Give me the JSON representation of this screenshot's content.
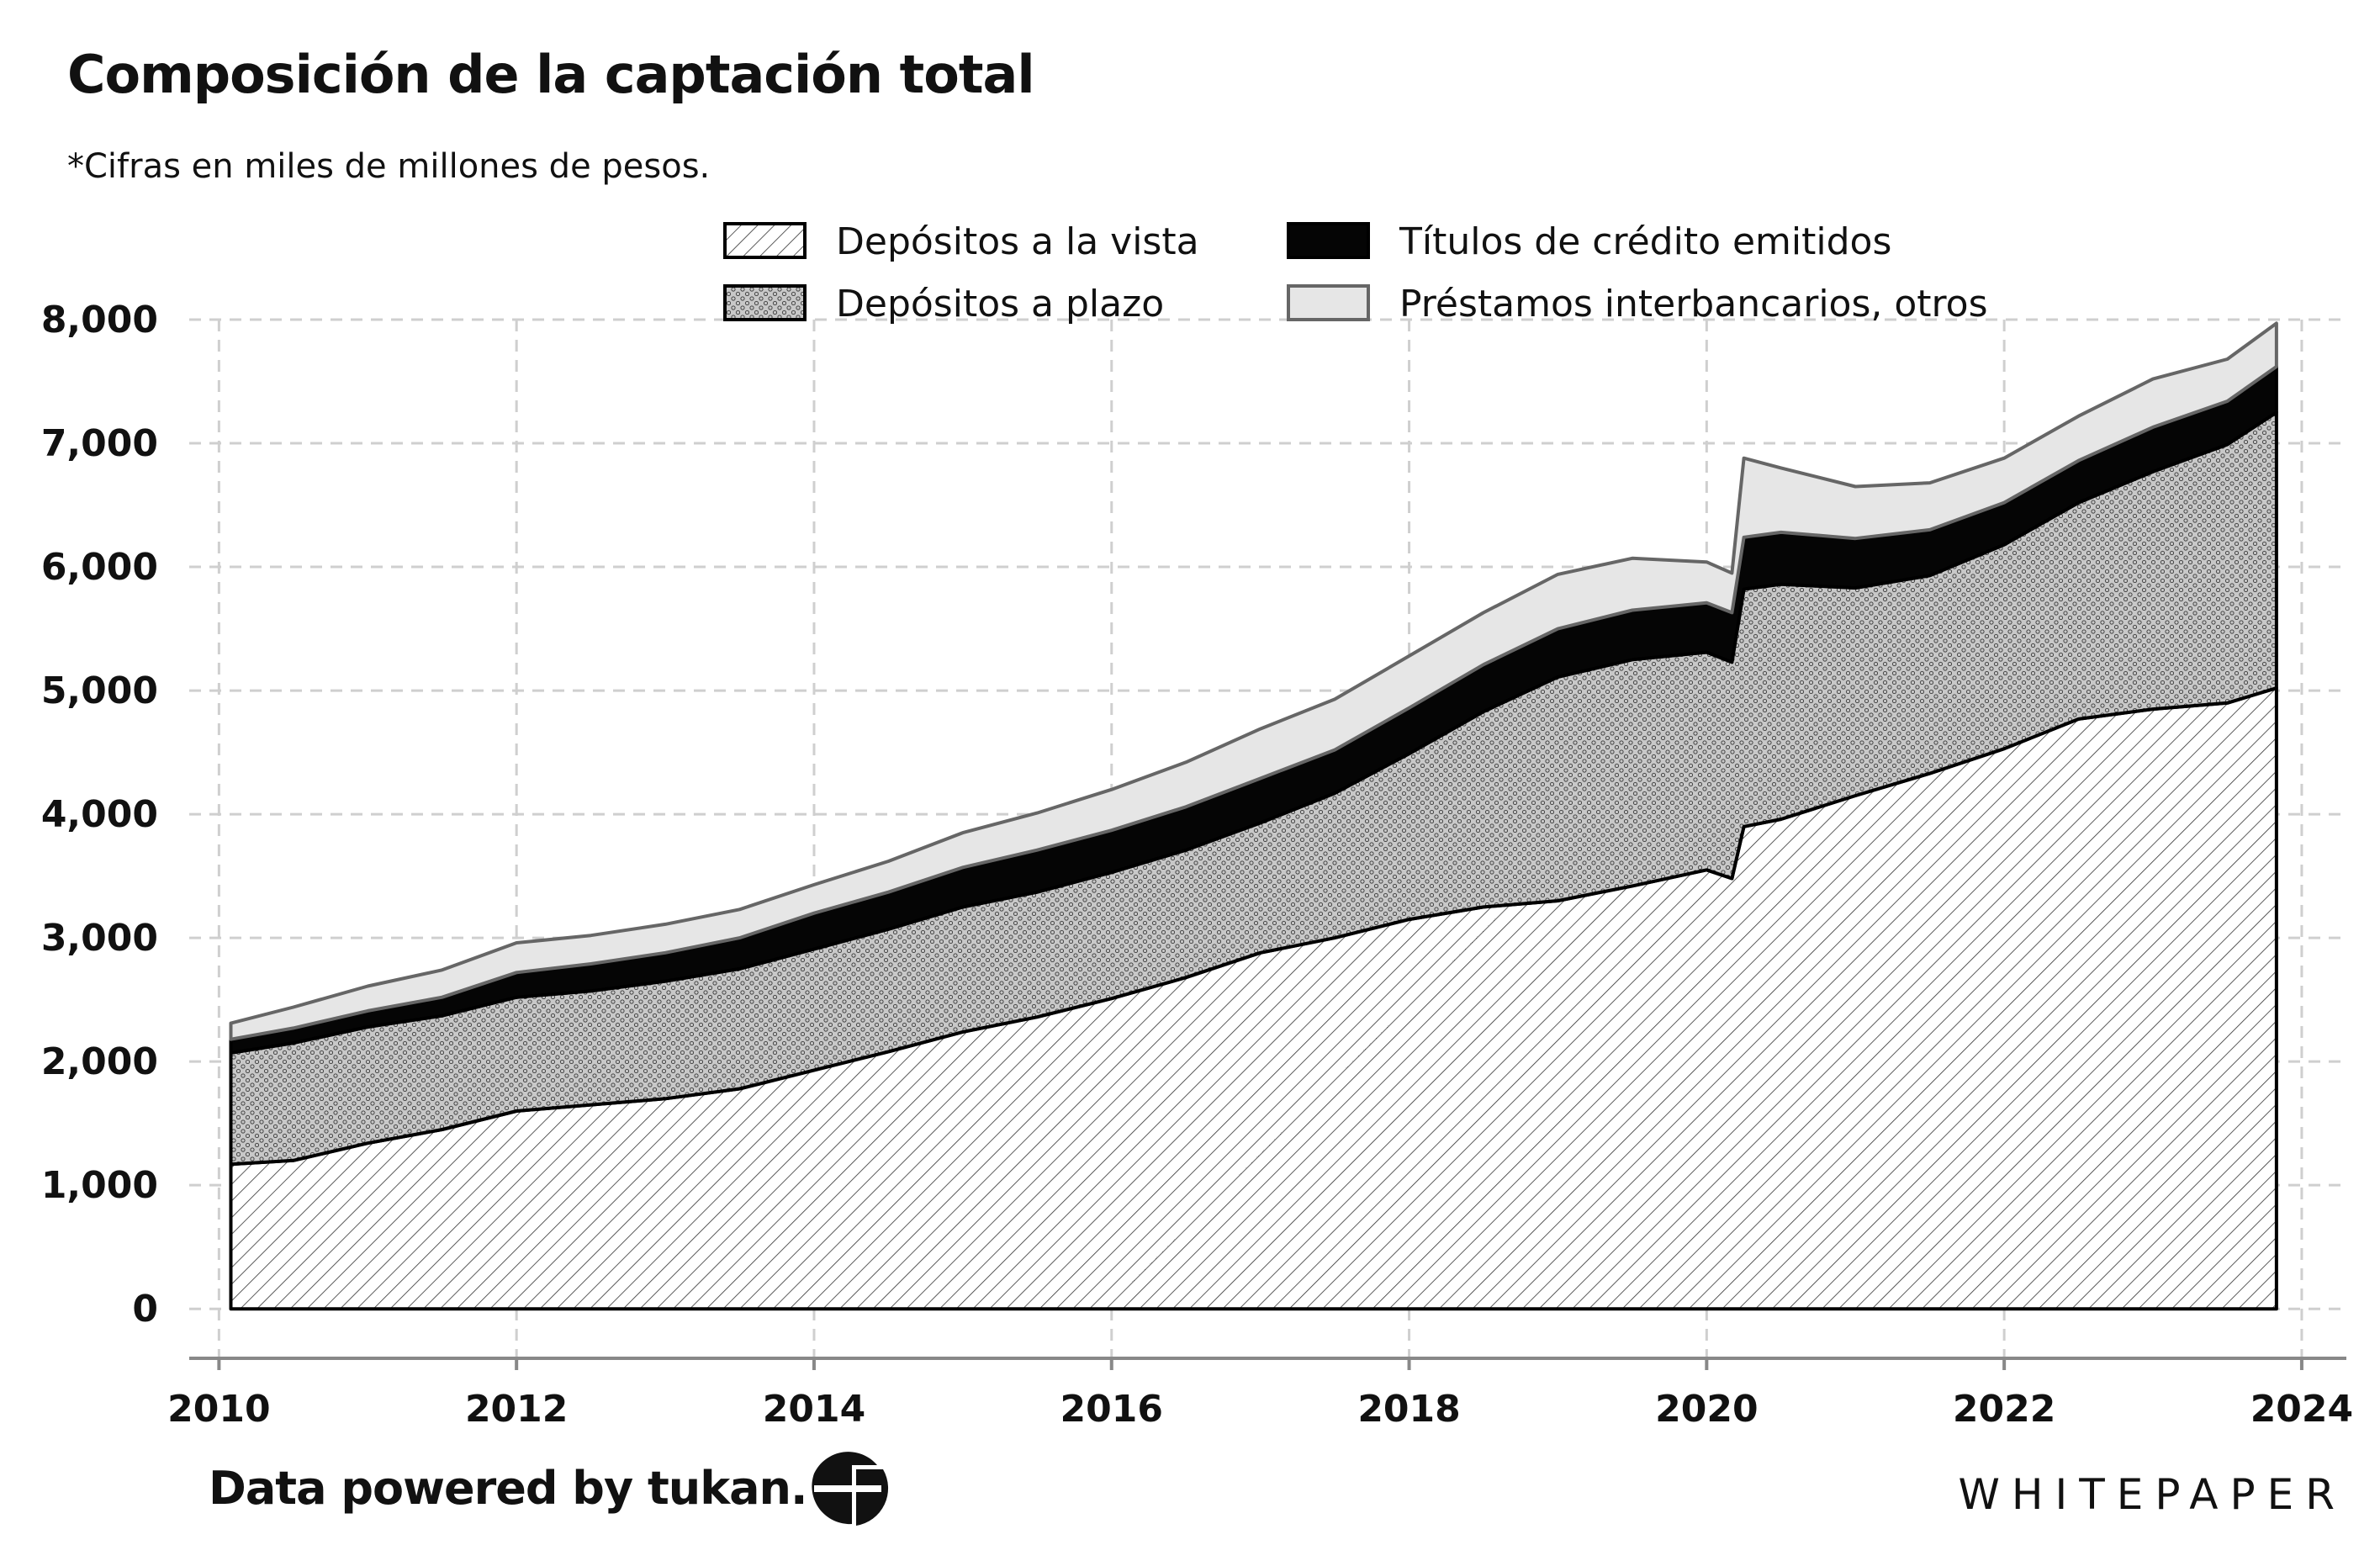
{
  "title": "Composición de la captación total",
  "subtitle": "*Cifras en miles de millones de pesos.",
  "footer": {
    "source": "Data powered by tukan.",
    "brand": "WHITEPAPER",
    "logo_icon": "tukan-logo-icon"
  },
  "chart_data": {
    "type": "area",
    "stacked": true,
    "x_label": "",
    "y_label": "",
    "xlim": [
      2009.8,
      2024.3
    ],
    "ylim": [
      -400,
      8000
    ],
    "x_ticks": [
      2010,
      2012,
      2014,
      2016,
      2018,
      2020,
      2022,
      2024
    ],
    "x_tick_labels": [
      "2010",
      "2012",
      "2014",
      "2016",
      "2018",
      "2020",
      "2022",
      "2024"
    ],
    "y_ticks": [
      0,
      1000,
      2000,
      3000,
      4000,
      5000,
      6000,
      7000,
      8000
    ],
    "y_tick_labels": [
      "0",
      "1,000",
      "2,000",
      "3,000",
      "4,000",
      "5,000",
      "6,000",
      "7,000",
      "8,000"
    ],
    "grid": true,
    "legend_position": "top",
    "x": [
      2010.08,
      2010.5,
      2011.0,
      2011.5,
      2012.0,
      2012.5,
      2013.0,
      2013.5,
      2014.0,
      2014.5,
      2015.0,
      2015.5,
      2016.0,
      2016.5,
      2017.0,
      2017.5,
      2018.0,
      2018.5,
      2019.0,
      2019.5,
      2020.0,
      2020.17,
      2020.25,
      2020.5,
      2021.0,
      2021.5,
      2022.0,
      2022.5,
      2023.0,
      2023.5,
      2023.83
    ],
    "series": [
      {
        "name": "Depósitos a la vista",
        "pattern": "hatch",
        "values": [
          1170,
          1200,
          1340,
          1450,
          1600,
          1650,
          1700,
          1780,
          1930,
          2080,
          2240,
          2360,
          2510,
          2680,
          2880,
          3000,
          3150,
          3250,
          3300,
          3420,
          3550,
          3480,
          3900,
          3960,
          4150,
          4330,
          4530,
          4770,
          4850,
          4900,
          5020
        ]
      },
      {
        "name": "Depósitos a plazo",
        "pattern": "dots",
        "values": [
          900,
          950,
          940,
          920,
          920,
          920,
          950,
          970,
          980,
          990,
          1010,
          1010,
          1020,
          1030,
          1050,
          1170,
          1340,
          1580,
          1810,
          1830,
          1760,
          1750,
          1920,
          1900,
          1680,
          1600,
          1650,
          1750,
          1920,
          2090,
          2230
        ]
      },
      {
        "name": "Títulos de crédito emitidos",
        "pattern": "solid",
        "values": [
          110,
          120,
          130,
          150,
          200,
          220,
          230,
          250,
          290,
          300,
          320,
          340,
          340,
          350,
          360,
          350,
          370,
          380,
          390,
          400,
          400,
          400,
          420,
          420,
          400,
          370,
          340,
          340,
          360,
          350,
          370
        ]
      },
      {
        "name": "Préstamos interbancarios, otros",
        "pattern": "light",
        "values": [
          130,
          170,
          200,
          220,
          240,
          230,
          230,
          230,
          230,
          250,
          280,
          300,
          330,
          360,
          400,
          410,
          420,
          420,
          440,
          420,
          330,
          320,
          640,
          520,
          420,
          380,
          360,
          360,
          390,
          340,
          350
        ]
      }
    ]
  }
}
